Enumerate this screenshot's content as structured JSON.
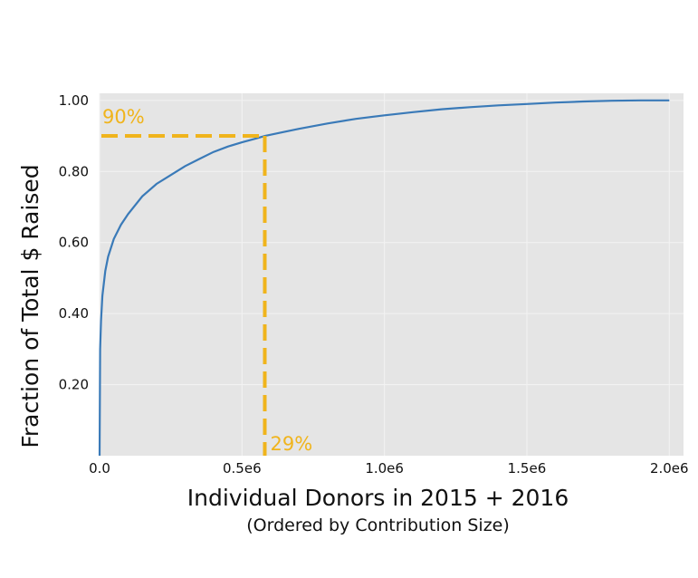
{
  "chart_data": {
    "type": "line",
    "title": "",
    "xlabel": "Individual Donors in 2015 + 2016",
    "xlabel_sub": "(Ordered by Contribution Size)",
    "ylabel": "Fraction of Total $ Raised",
    "xlim": [
      0,
      2050000
    ],
    "ylim": [
      0,
      1.02
    ],
    "x_ticks": [
      0,
      500000,
      1000000,
      1500000,
      2000000
    ],
    "x_tick_labels": [
      "0.0",
      "0.5e6",
      "1.0e6",
      "1.5e6",
      "2.0e6"
    ],
    "y_ticks": [
      0.2,
      0.4,
      0.6,
      0.8,
      1.0
    ],
    "y_tick_labels": [
      "0.20",
      "0.40",
      "0.60",
      "0.80",
      "1.00"
    ],
    "grid": true,
    "background_color": "#e5e5e5",
    "line_color": "#3a7ab8",
    "highlight_color": "#f0b41c",
    "series": [
      {
        "x": [
          0,
          2000,
          5000,
          10000,
          20000,
          30000,
          50000,
          75000,
          100000,
          150000,
          200000,
          250000,
          300000,
          350000,
          400000,
          450000,
          500000,
          550000,
          580000,
          650000,
          700000,
          800000,
          900000,
          1000000,
          1100000,
          1200000,
          1300000,
          1400000,
          1500000,
          1600000,
          1700000,
          1800000,
          1900000,
          2000000
        ],
        "values": [
          0.0,
          0.3,
          0.38,
          0.45,
          0.52,
          0.56,
          0.61,
          0.65,
          0.68,
          0.73,
          0.765,
          0.79,
          0.815,
          0.835,
          0.855,
          0.87,
          0.882,
          0.893,
          0.9,
          0.912,
          0.92,
          0.935,
          0.948,
          0.958,
          0.967,
          0.975,
          0.981,
          0.986,
          0.99,
          0.994,
          0.997,
          0.999,
          1.0,
          1.0
        ]
      }
    ],
    "highlight": {
      "x": 580000,
      "y": 0.9
    },
    "annotations": {
      "y_label": "90%",
      "x_label": "29%"
    }
  }
}
